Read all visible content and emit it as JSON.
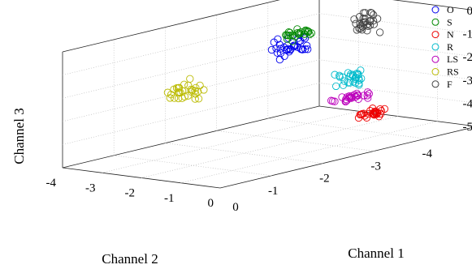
{
  "chart_data": {
    "type": "scatter",
    "projection": "3d",
    "xlabel": "Channel 1",
    "ylabel": "Channel 2",
    "zlabel": "Channel 3",
    "xlim": [
      -5,
      0
    ],
    "ylim": [
      -4,
      0
    ],
    "zlim": [
      -5,
      0
    ],
    "x_ticks": [
      "-1",
      "-2",
      "-3",
      "-4",
      "-5"
    ],
    "y_ticks": [
      "0",
      "-1",
      "-2",
      "-3",
      "-4"
    ],
    "z_ticks": [
      "0",
      "-1",
      "-2",
      "-3",
      "-4",
      "-5"
    ],
    "origin_label": "0",
    "grid": true,
    "legend_position": "top-right",
    "marker": "open-circle",
    "series": [
      {
        "name": "O",
        "color": "#0000ee",
        "center": [
          -3.4,
          -2.6,
          -1.3
        ],
        "spread": [
          0.5,
          0.35,
          0.3
        ],
        "count": 34
      },
      {
        "name": "S",
        "color": "#008800",
        "center": [
          -3.7,
          -2.8,
          -0.9
        ],
        "spread": [
          0.3,
          0.2,
          0.15
        ],
        "count": 24
      },
      {
        "name": "N",
        "color": "#ee0000",
        "center": [
          -3.2,
          -0.3,
          -3.5
        ],
        "spread": [
          0.25,
          0.15,
          0.15
        ],
        "count": 28
      },
      {
        "name": "R",
        "color": "#00bbcc",
        "center": [
          -3.6,
          -1.4,
          -2.5
        ],
        "spread": [
          0.25,
          0.2,
          0.25
        ],
        "count": 28
      },
      {
        "name": "LS",
        "color": "#bb00bb",
        "center": [
          -3.2,
          -0.9,
          -3.0
        ],
        "spread": [
          0.3,
          0.15,
          0.12
        ],
        "count": 28
      },
      {
        "name": "RS",
        "color": "#bbbb00",
        "center": [
          -1.6,
          -2.9,
          -2.3
        ],
        "spread": [
          0.4,
          0.3,
          0.4
        ],
        "count": 30
      },
      {
        "name": "F",
        "color": "#444444",
        "center": [
          -4.5,
          -2.2,
          -0.8
        ],
        "spread": [
          0.2,
          0.2,
          0.45
        ],
        "count": 30
      }
    ]
  }
}
